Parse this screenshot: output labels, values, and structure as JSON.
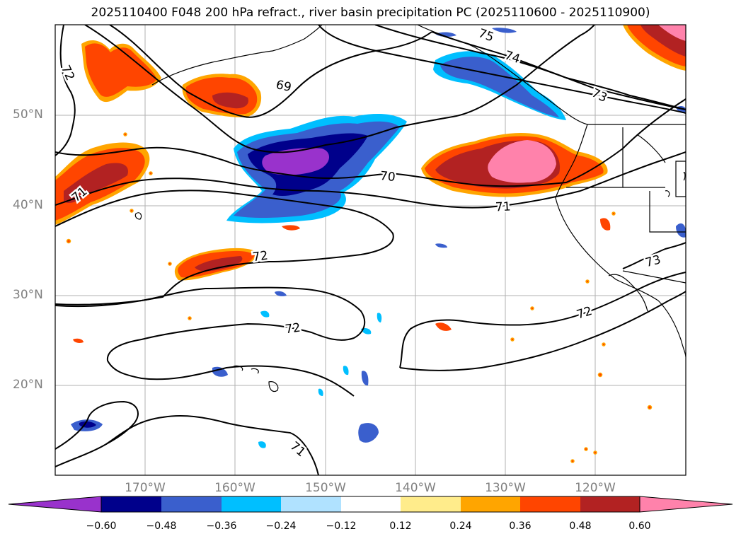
{
  "title": "2025110400 F048 200 hPa refract., river basin precipitation PC (2025110600 - 2025110900)",
  "lat_labels": [
    "50°N",
    "40°N",
    "30°N",
    "20°N"
  ],
  "lon_labels": [
    "170°W",
    "160°W",
    "150°W",
    "140°W",
    "130°W",
    "120°W"
  ],
  "contour_labels": [
    "72",
    "69",
    "75",
    "74",
    "73",
    "70",
    "71",
    "71",
    "72",
    "73",
    "72",
    "72",
    "71"
  ],
  "colorbar": {
    "ticks": [
      "−0.60",
      "−0.48",
      "−0.36",
      "−0.24",
      "−0.12",
      "0.12",
      "0.24",
      "0.36",
      "0.48",
      "0.60"
    ],
    "colors": [
      "#9932cc",
      "#00008b",
      "#3a5fcd",
      "#00bfff",
      "#b0e2ff",
      "#ffffff",
      "#ffec8b",
      "#ffa500",
      "#ff4500",
      "#b22222",
      "#ff82ab",
      "#ff82ab"
    ]
  },
  "fill_colors": {
    "purple": "#9932cc",
    "navy": "#00008b",
    "blue": "#3a5fcd",
    "sky": "#00bfff",
    "lightblue": "#b0e2ff",
    "yellow": "#ffec8b",
    "orange": "#ffa500",
    "redorange": "#ff4500",
    "firebrick": "#b22222",
    "pink": "#ff82ab"
  }
}
